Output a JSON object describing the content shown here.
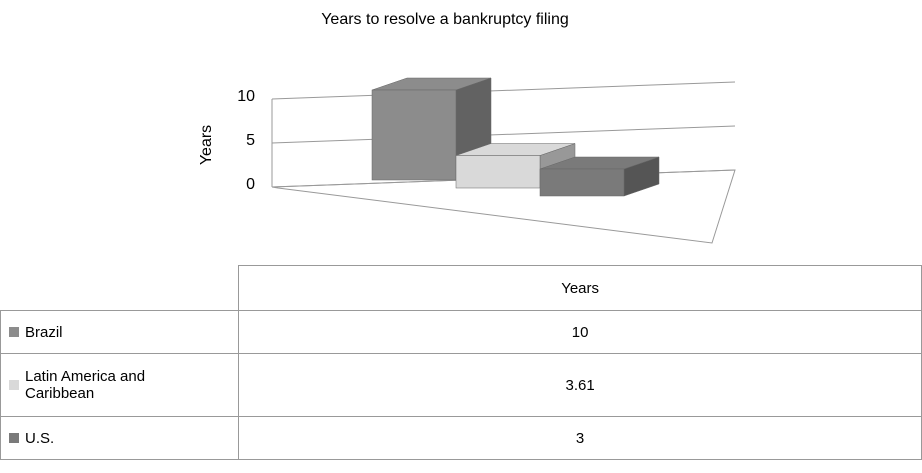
{
  "chart_data": {
    "type": "bar3d",
    "title": "Years to resolve a bankruptcy filing",
    "y_label": "Years",
    "categories": [
      "Brazil",
      "Latin America and Caribbean",
      "U.S."
    ],
    "series": [
      {
        "name": "Years",
        "colors": [
          "#8c8c8c",
          "#d9d9d9",
          "#7a7a7a"
        ],
        "values": [
          10,
          3.61,
          3
        ]
      }
    ],
    "ylim": [
      0,
      10
    ],
    "yticks": [
      0,
      5,
      10
    ],
    "grid": true
  }
}
